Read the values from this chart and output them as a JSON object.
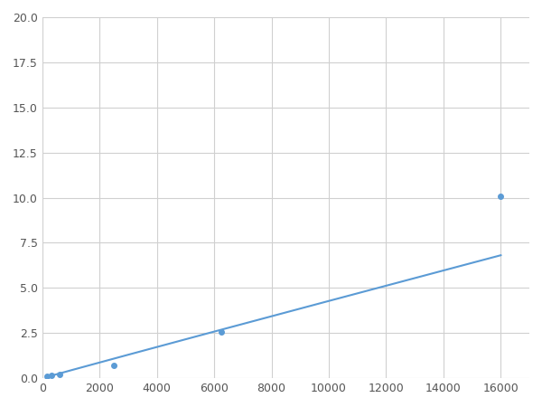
{
  "x_points": [
    156,
    313,
    625,
    2500,
    6250,
    16000
  ],
  "y_points": [
    0.1,
    0.15,
    0.2,
    0.7,
    2.55,
    10.1
  ],
  "line_color": "#5b9bd5",
  "marker_color": "#5b9bd5",
  "marker_style": "o",
  "marker_size": 4,
  "xlim": [
    0,
    17000
  ],
  "ylim": [
    0,
    20
  ],
  "xticks": [
    0,
    2000,
    4000,
    6000,
    8000,
    10000,
    12000,
    14000,
    16000
  ],
  "yticks": [
    0.0,
    2.5,
    5.0,
    7.5,
    10.0,
    12.5,
    15.0,
    17.5,
    20.0
  ],
  "grid": true,
  "background_color": "#ffffff",
  "figure_bg": "#ffffff"
}
